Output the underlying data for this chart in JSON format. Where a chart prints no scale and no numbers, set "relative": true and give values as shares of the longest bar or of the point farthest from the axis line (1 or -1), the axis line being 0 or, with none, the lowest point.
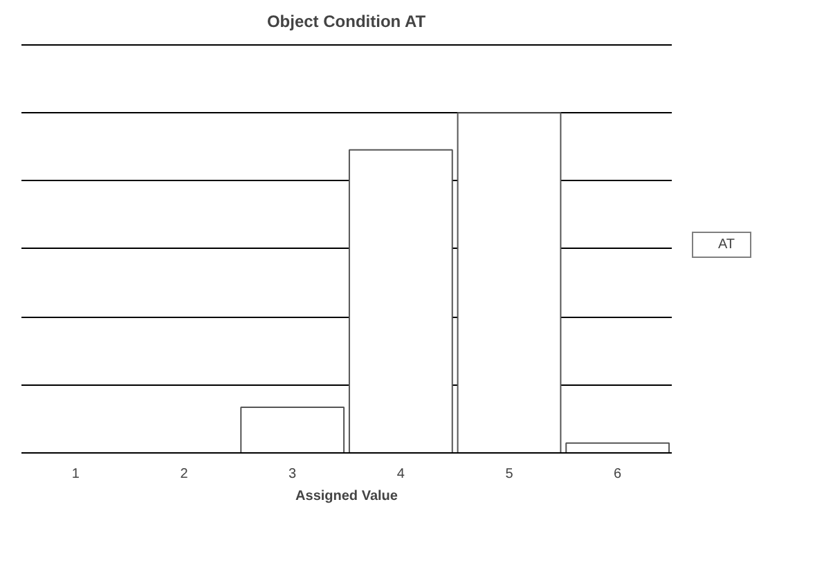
{
  "chart_data": {
    "type": "bar",
    "title": "Object Condition AT",
    "xlabel": "Assigned Value",
    "categories": [
      "1",
      "2",
      "3",
      "4",
      "5",
      "6"
    ],
    "relative": true,
    "grid": "y",
    "legend": "right",
    "series": [
      {
        "name": "AT",
        "color": "#ffffff",
        "values": [
          0,
          0,
          0.134,
          0.891,
          1,
          0.029
        ]
      }
    ]
  }
}
